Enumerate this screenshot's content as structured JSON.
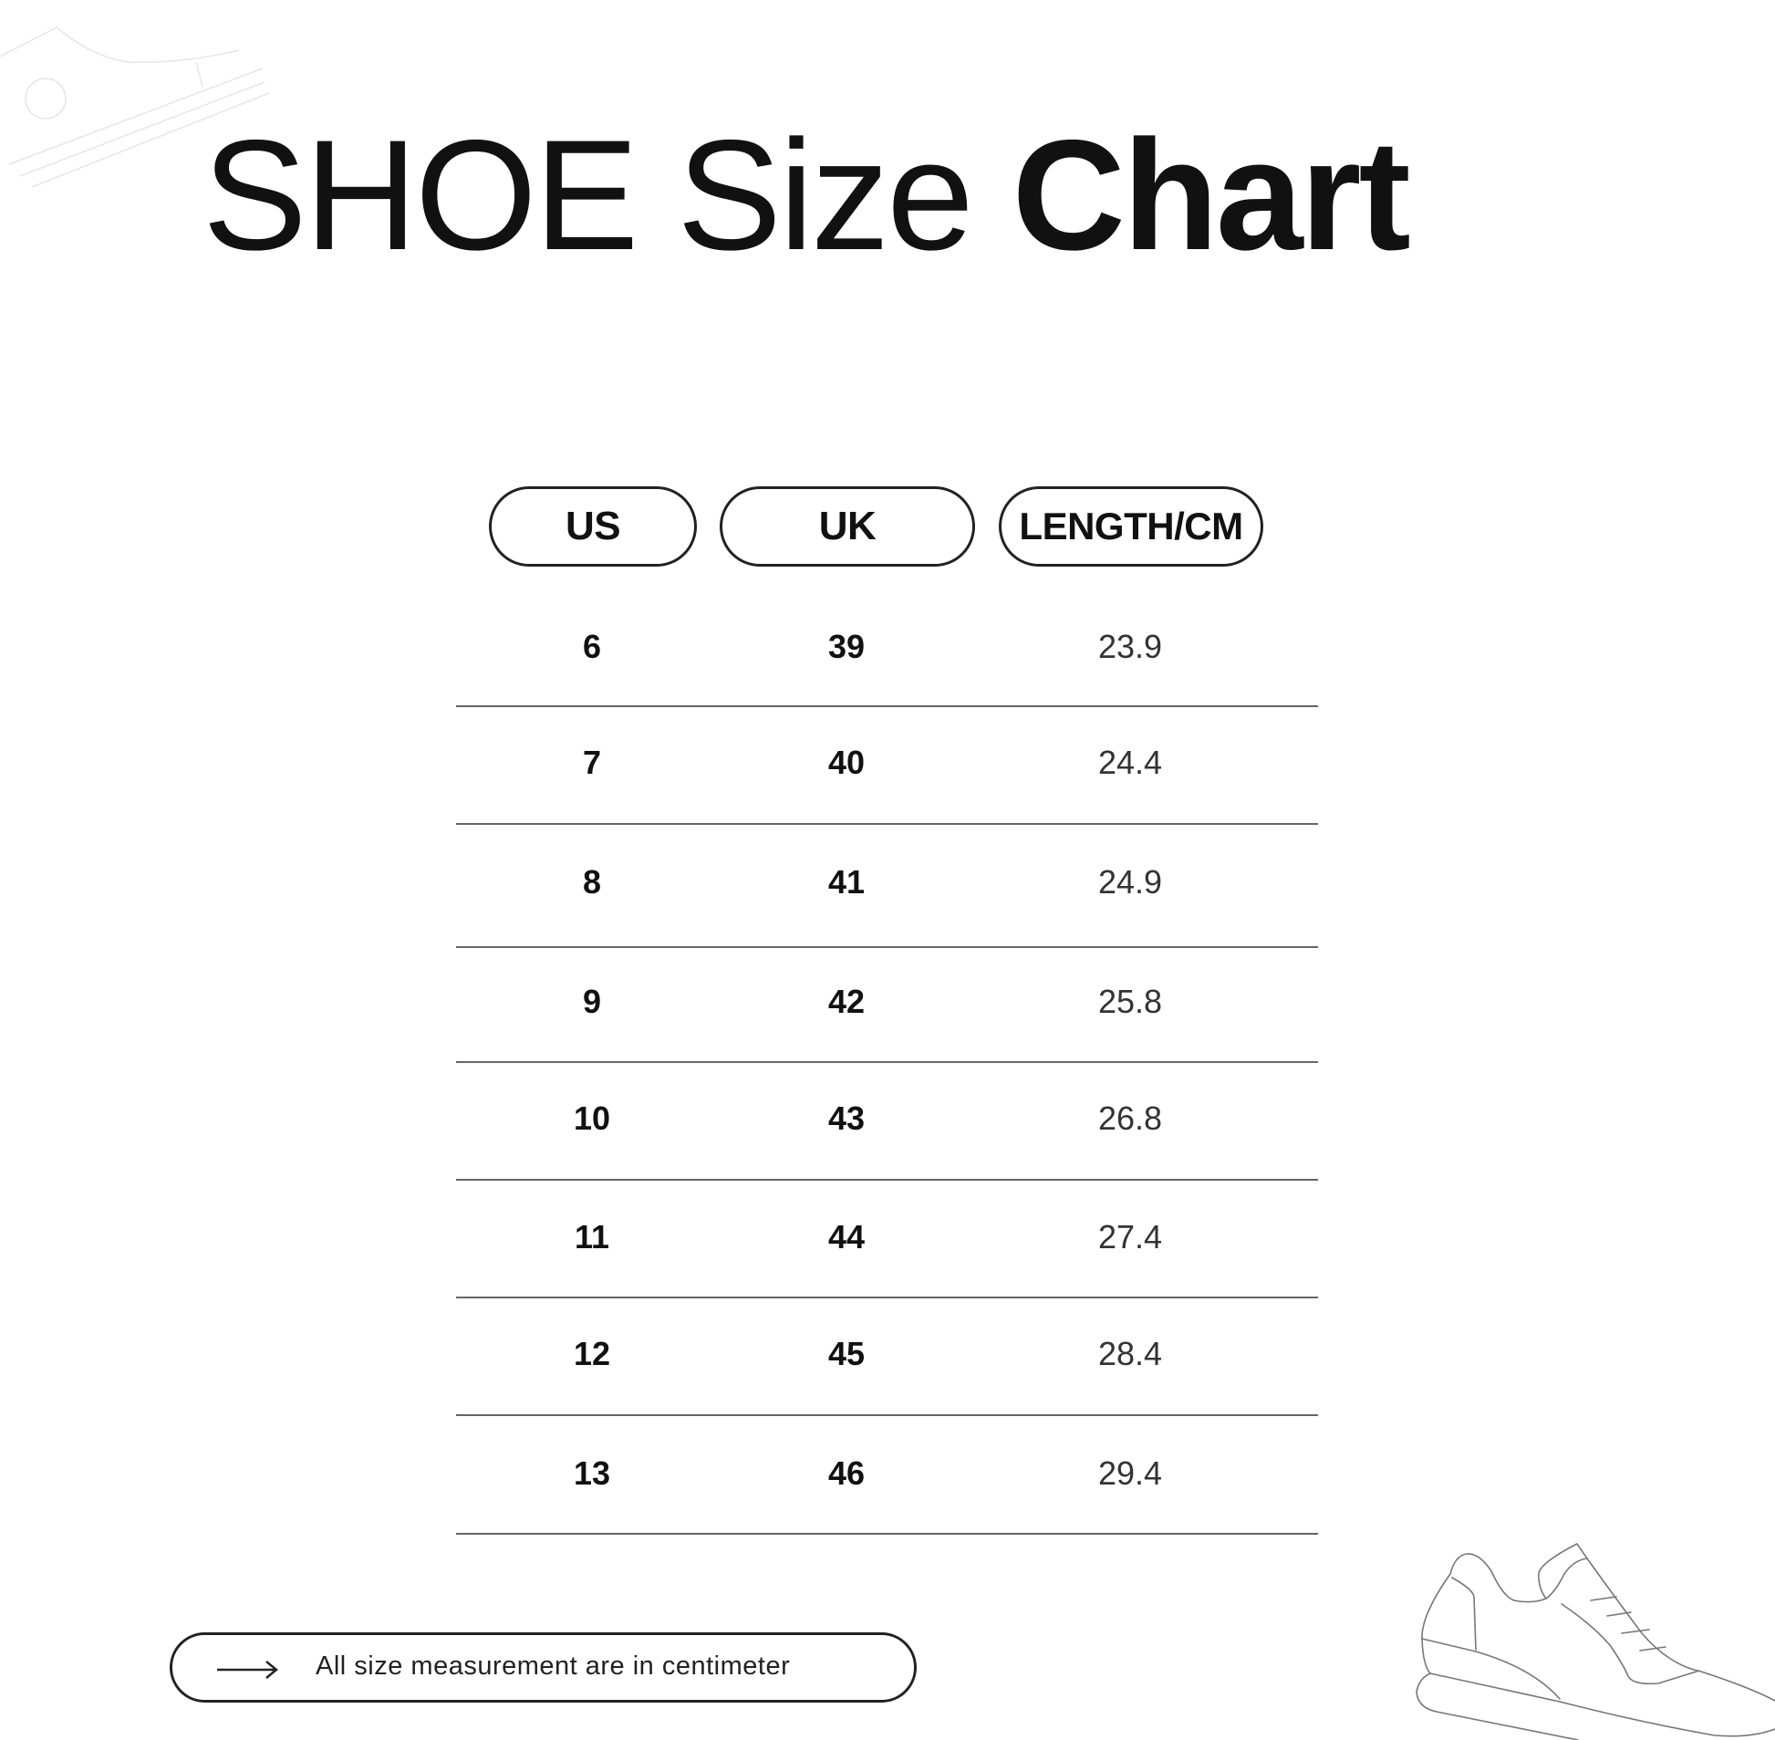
{
  "title": {
    "light": "SHOE Size",
    "bold": "Chart"
  },
  "table": {
    "headers": [
      "US",
      "UK",
      "LENGTH/CM"
    ],
    "rows": [
      [
        "6",
        "39",
        "23.9"
      ],
      [
        "7",
        "40",
        "24.4"
      ],
      [
        "8",
        "41",
        "24.9"
      ],
      [
        "9",
        "42",
        "25.8"
      ],
      [
        "10",
        "43",
        "26.8"
      ],
      [
        "11",
        "44",
        "27.4"
      ],
      [
        "12",
        "45",
        "28.4"
      ],
      [
        "13",
        "46",
        "29.4"
      ]
    ]
  },
  "footer": {
    "icon": "arrow-right-icon",
    "note": "All size measurement are in centimeter"
  },
  "decorations": [
    "sneaker-outline-icon-top-left",
    "sneaker-outline-icon-bottom-right"
  ]
}
